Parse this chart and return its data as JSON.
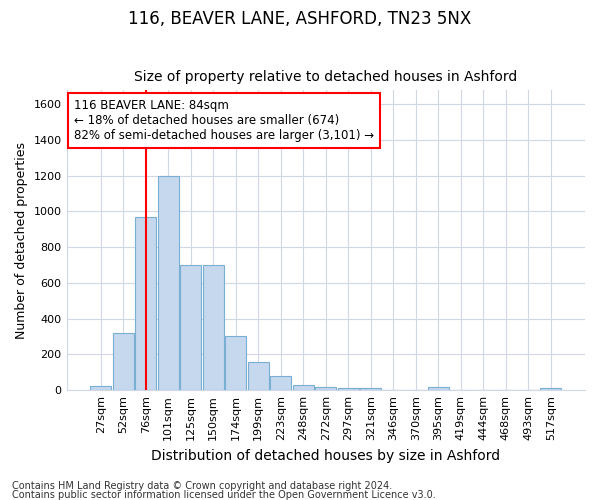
{
  "title1": "116, BEAVER LANE, ASHFORD, TN23 5NX",
  "title2": "Size of property relative to detached houses in Ashford",
  "xlabel": "Distribution of detached houses by size in Ashford",
  "ylabel": "Number of detached properties",
  "footer1": "Contains HM Land Registry data © Crown copyright and database right 2024.",
  "footer2": "Contains public sector information licensed under the Open Government Licence v3.0.",
  "annotation_title": "116 BEAVER LANE: 84sqm",
  "annotation_line1": "← 18% of detached houses are smaller (674)",
  "annotation_line2": "82% of semi-detached houses are larger (3,101) →",
  "bar_labels": [
    "27sqm",
    "52sqm",
    "76sqm",
    "101sqm",
    "125sqm",
    "150sqm",
    "174sqm",
    "199sqm",
    "223sqm",
    "248sqm",
    "272sqm",
    "297sqm",
    "321sqm",
    "346sqm",
    "370sqm",
    "395sqm",
    "419sqm",
    "444sqm",
    "468sqm",
    "493sqm",
    "517sqm"
  ],
  "bar_values": [
    25,
    320,
    970,
    1200,
    700,
    700,
    305,
    155,
    80,
    30,
    20,
    10,
    10,
    0,
    0,
    15,
    0,
    0,
    0,
    0,
    10
  ],
  "bar_color": "#c5d8ee",
  "bar_edge_color": "#7aafd4",
  "red_line_x": 2.0,
  "ylim": [
    0,
    1680
  ],
  "yticks": [
    0,
    200,
    400,
    600,
    800,
    1000,
    1200,
    1400,
    1600
  ],
  "bg_color": "#ffffff",
  "grid_color": "#d0d8e8",
  "title_fontsize": 12,
  "subtitle_fontsize": 10,
  "ylabel_fontsize": 9,
  "xlabel_fontsize": 10,
  "tick_fontsize": 8,
  "footer_fontsize": 7
}
